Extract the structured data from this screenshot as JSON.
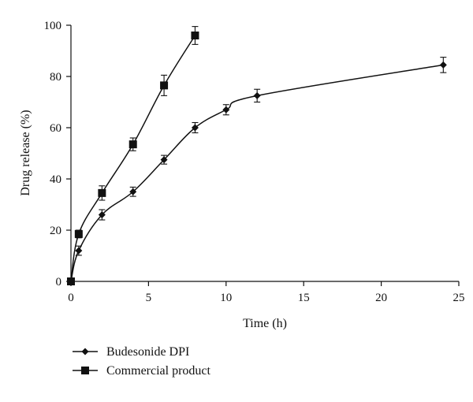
{
  "chart_data": {
    "type": "line",
    "title": "",
    "xlabel": "Time (h)",
    "ylabel": "Drug release (%)",
    "xlim": [
      0,
      25
    ],
    "ylim": [
      0,
      100
    ],
    "xticks": [
      0,
      5,
      10,
      15,
      20,
      25
    ],
    "yticks": [
      0,
      20,
      40,
      60,
      80,
      100
    ],
    "grid": false,
    "legend_position": "bottom-left",
    "series": [
      {
        "name": "Budesonide DPI",
        "marker": "diamond",
        "x": [
          0,
          0.5,
          2,
          4,
          6,
          8,
          10,
          12,
          24
        ],
        "y": [
          0,
          12,
          26,
          35,
          47.5,
          60,
          67,
          72.5,
          84.5
        ],
        "err": [
          0,
          1.8,
          2,
          1.8,
          1.7,
          2,
          2,
          2.5,
          3
        ]
      },
      {
        "name": "Commercial product",
        "marker": "square",
        "x": [
          0,
          0.5,
          2,
          4,
          6,
          8
        ],
        "y": [
          0,
          18.5,
          34.5,
          53.5,
          76.5,
          96
        ],
        "err": [
          0,
          1.5,
          2.8,
          2.5,
          4,
          3.5
        ]
      }
    ]
  }
}
